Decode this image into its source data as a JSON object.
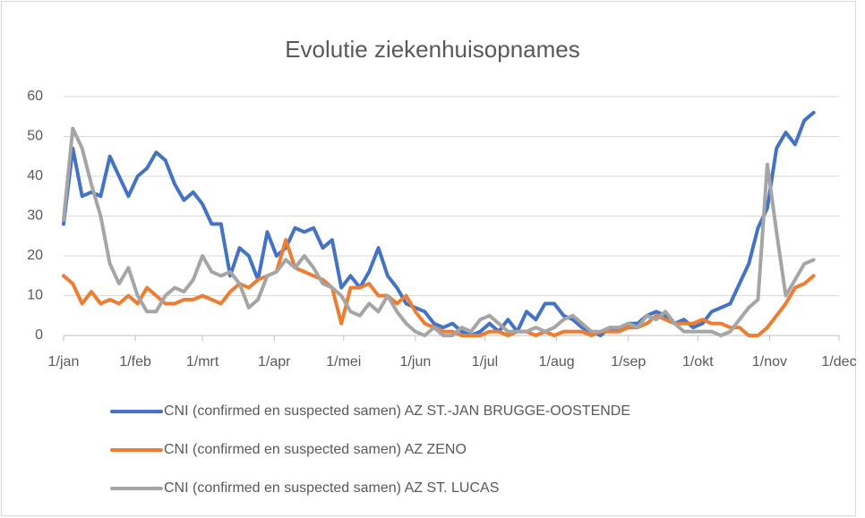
{
  "chart_data": {
    "type": "line",
    "title": "Evolutie ziekenhuisopnames",
    "x": [
      0,
      4,
      8,
      12,
      16,
      20,
      24,
      28,
      32,
      36,
      40,
      44,
      48,
      52,
      56,
      60,
      64,
      68,
      72,
      76,
      80,
      84,
      88,
      92,
      96,
      100,
      104,
      108,
      112,
      116,
      120,
      124,
      128,
      132,
      136,
      140,
      144,
      148,
      152,
      156,
      160,
      164,
      168,
      172,
      176,
      180,
      184,
      188,
      192,
      196,
      200,
      204,
      208,
      212,
      216,
      220,
      224,
      228,
      232,
      236,
      240,
      244,
      248,
      252,
      256,
      260,
      264,
      268,
      272,
      276,
      280,
      284,
      288,
      292,
      296,
      300,
      304,
      308,
      312,
      316,
      320,
      324
    ],
    "xlim": [
      0,
      335
    ],
    "xticks": [
      {
        "value": 0,
        "label": "1/jan"
      },
      {
        "value": 31,
        "label": "1/feb"
      },
      {
        "value": 60,
        "label": "1/mrt"
      },
      {
        "value": 91,
        "label": "1/apr"
      },
      {
        "value": 121,
        "label": "1/mei"
      },
      {
        "value": 152,
        "label": "1/jun"
      },
      {
        "value": 182,
        "label": "1/jul"
      },
      {
        "value": 213,
        "label": "1/aug"
      },
      {
        "value": 244,
        "label": "1/sep"
      },
      {
        "value": 274,
        "label": "1/okt"
      },
      {
        "value": 305,
        "label": "1/nov"
      },
      {
        "value": 335,
        "label": "1/dec"
      }
    ],
    "ylim": [
      0,
      60
    ],
    "yticks": [
      0,
      10,
      20,
      30,
      40,
      50,
      60
    ],
    "grid": true,
    "legend": "bottom",
    "series": [
      {
        "name": "CNI (confirmed en suspected samen) AZ ST.-JAN BRUGGE-OOSTENDE",
        "color": "#4472c4",
        "values": [
          28,
          47,
          35,
          36,
          35,
          45,
          40,
          35,
          40,
          42,
          46,
          44,
          38,
          34,
          36,
          33,
          28,
          28,
          15,
          22,
          20,
          14,
          26,
          20,
          22,
          27,
          26,
          27,
          22,
          24,
          12,
          15,
          12,
          16,
          22,
          15,
          12,
          8,
          7,
          6,
          3,
          2,
          3,
          1,
          0,
          1,
          3,
          1,
          4,
          1,
          6,
          4,
          8,
          8,
          5,
          4,
          2,
          1,
          0,
          2,
          1,
          3,
          3,
          5,
          6,
          5,
          3,
          4,
          2,
          3,
          6,
          7,
          8,
          13,
          18,
          27,
          32,
          47,
          51,
          48,
          54,
          56
        ]
      },
      {
        "name": "CNI (confirmed en suspected samen) AZ ZENO",
        "color": "#ed7d31",
        "values": [
          15,
          13,
          8,
          11,
          8,
          9,
          8,
          10,
          8,
          12,
          10,
          8,
          8,
          9,
          9,
          10,
          9,
          8,
          11,
          13,
          12,
          14,
          15,
          16,
          24,
          17,
          16,
          15,
          14,
          12,
          3,
          12,
          12,
          13,
          10,
          10,
          8,
          10,
          6,
          3,
          2,
          1,
          1,
          0,
          0,
          0,
          1,
          1,
          0,
          1,
          1,
          0,
          1,
          0,
          1,
          1,
          1,
          0,
          1,
          1,
          1,
          2,
          2,
          3,
          5,
          4,
          3,
          3,
          3,
          4,
          3,
          3,
          2,
          2,
          0,
          0,
          2,
          5,
          8,
          12,
          13,
          15
        ]
      },
      {
        "name": "CNI (confirmed en suspected samen) AZ ST. LUCAS",
        "color": "#a5a5a5",
        "values": [
          29,
          52,
          47,
          38,
          30,
          18,
          13,
          17,
          10,
          6,
          6,
          10,
          12,
          11,
          14,
          20,
          16,
          15,
          16,
          13,
          7,
          9,
          15,
          16,
          19,
          17,
          20,
          17,
          13,
          12,
          10,
          6,
          5,
          8,
          6,
          10,
          6,
          3,
          1,
          0,
          2,
          0,
          0,
          2,
          1,
          4,
          5,
          3,
          1,
          1,
          1,
          2,
          1,
          2,
          4,
          5,
          3,
          1,
          1,
          2,
          2,
          3,
          2,
          5,
          4,
          6,
          3,
          1,
          1,
          1,
          1,
          0,
          1,
          4,
          7,
          9,
          43,
          26,
          10,
          14,
          18,
          19
        ]
      }
    ]
  }
}
